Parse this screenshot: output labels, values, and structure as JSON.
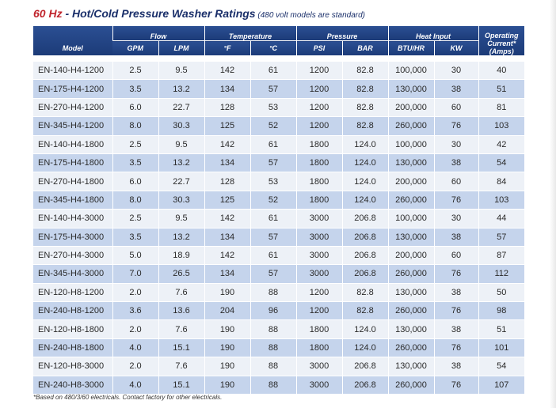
{
  "title": {
    "hz": "60 Hz",
    "main": " - Hot/Cold Pressure Washer Ratings",
    "note": " (480 volt models are standard)"
  },
  "header": {
    "model": "Model",
    "flow": "Flow",
    "temperature": "Temperature",
    "pressure": "Pressure",
    "heat_input": "Heat Input",
    "operating_current": "Operating Current*",
    "amps": "(Amps)",
    "gpm": "GPM",
    "lpm": "LPM",
    "deg_f": "°F",
    "deg_c": "°C",
    "psi": "PSI",
    "bar": "BAR",
    "btu_hr": "BTU/HR",
    "kw": "KW"
  },
  "rows": [
    [
      "EN-140-H4-1200",
      "2.5",
      "9.5",
      "142",
      "61",
      "1200",
      "82.8",
      "100,000",
      "30",
      "40"
    ],
    [
      "EN-175-H4-1200",
      "3.5",
      "13.2",
      "134",
      "57",
      "1200",
      "82.8",
      "130,000",
      "38",
      "51"
    ],
    [
      "EN-270-H4-1200",
      "6.0",
      "22.7",
      "128",
      "53",
      "1200",
      "82.8",
      "200,000",
      "60",
      "81"
    ],
    [
      "EN-345-H4-1200",
      "8.0",
      "30.3",
      "125",
      "52",
      "1200",
      "82.8",
      "260,000",
      "76",
      "103"
    ],
    [
      "EN-140-H4-1800",
      "2.5",
      "9.5",
      "142",
      "61",
      "1800",
      "124.0",
      "100,000",
      "30",
      "42"
    ],
    [
      "EN-175-H4-1800",
      "3.5",
      "13.2",
      "134",
      "57",
      "1800",
      "124.0",
      "130,000",
      "38",
      "54"
    ],
    [
      "EN-270-H4-1800",
      "6.0",
      "22.7",
      "128",
      "53",
      "1800",
      "124.0",
      "200,000",
      "60",
      "84"
    ],
    [
      "EN-345-H4-1800",
      "8.0",
      "30.3",
      "125",
      "52",
      "1800",
      "124.0",
      "260,000",
      "76",
      "103"
    ],
    [
      "EN-140-H4-3000",
      "2.5",
      "9.5",
      "142",
      "61",
      "3000",
      "206.8",
      "100,000",
      "30",
      "44"
    ],
    [
      "EN-175-H4-3000",
      "3.5",
      "13.2",
      "134",
      "57",
      "3000",
      "206.8",
      "130,000",
      "38",
      "57"
    ],
    [
      "EN-270-H4-3000",
      "5.0",
      "18.9",
      "142",
      "61",
      "3000",
      "206.8",
      "200,000",
      "60",
      "87"
    ],
    [
      "EN-345-H4-3000",
      "7.0",
      "26.5",
      "134",
      "57",
      "3000",
      "206.8",
      "260,000",
      "76",
      "112"
    ],
    [
      "EN-120-H8-1200",
      "2.0",
      "7.6",
      "190",
      "88",
      "1200",
      "82.8",
      "130,000",
      "38",
      "50"
    ],
    [
      "EN-240-H8-1200",
      "3.6",
      "13.6",
      "204",
      "96",
      "1200",
      "82.8",
      "260,000",
      "76",
      "98"
    ],
    [
      "EN-120-H8-1800",
      "2.0",
      "7.6",
      "190",
      "88",
      "1800",
      "124.0",
      "130,000",
      "38",
      "51"
    ],
    [
      "EN-240-H8-1800",
      "4.0",
      "15.1",
      "190",
      "88",
      "1800",
      "124.0",
      "260,000",
      "76",
      "101"
    ],
    [
      "EN-120-H8-3000",
      "2.0",
      "7.6",
      "190",
      "88",
      "3000",
      "206.8",
      "130,000",
      "38",
      "54"
    ],
    [
      "EN-240-H8-3000",
      "4.0",
      "15.1",
      "190",
      "88",
      "3000",
      "206.8",
      "260,000",
      "76",
      "107"
    ]
  ],
  "footnote": "*Based on 480/3/60 electricals. Contact factory for other electricals.",
  "colors": {
    "header_bg": "#1c3b78",
    "row_light": "#edf1f7",
    "row_dark": "#c5d4ec",
    "title_red": "#c0252d",
    "title_blue": "#1a2f6a"
  }
}
